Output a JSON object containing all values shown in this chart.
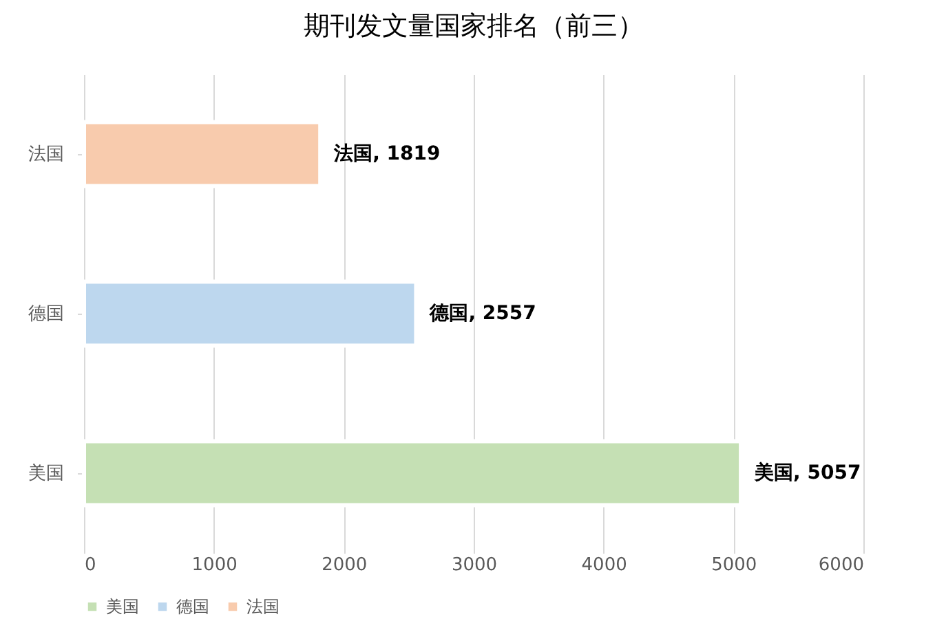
{
  "chart_data": {
    "type": "bar",
    "title": "期刊发文量国家排名（前三）",
    "orientation": "horizontal",
    "categories": [
      "法国",
      "德国",
      "美国"
    ],
    "series": [
      {
        "name": "美国",
        "color": "#c5e0b4",
        "values": [
          null,
          null,
          5057
        ],
        "value_labels": [
          null,
          null,
          "美国, 5057"
        ]
      },
      {
        "name": "德国",
        "color": "#bdd7ee",
        "values": [
          null,
          2557,
          null
        ],
        "value_labels": [
          null,
          "德国, 2557",
          null
        ]
      },
      {
        "name": "法国",
        "color": "#f8cbad",
        "values": [
          1819,
          null,
          null
        ],
        "value_labels": [
          "法国, 1819",
          null,
          null
        ]
      }
    ],
    "xlim": [
      0,
      6000
    ],
    "xticks": [
      0,
      1000,
      2000,
      3000,
      4000,
      5000,
      6000
    ],
    "grid": "x",
    "legend": "bottom"
  }
}
